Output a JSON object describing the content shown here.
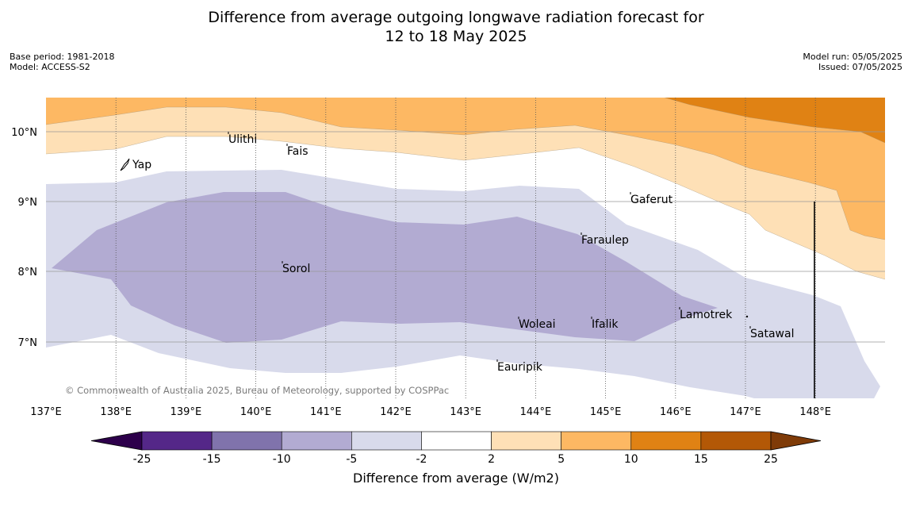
{
  "title": {
    "line1": "Difference from average outgoing longwave radiation forecast for",
    "line2": "12 to 18 May 2025"
  },
  "meta_left": {
    "base_period": "Base period: 1981-2018",
    "model": "Model: ACCESS-S2"
  },
  "meta_right": {
    "model_run": "Model run: 05/05/2025",
    "issued": "Issued: 07/05/2025"
  },
  "map": {
    "lon_ticks": [
      "137°E",
      "138°E",
      "139°E",
      "140°E",
      "141°E",
      "142°E",
      "143°E",
      "144°E",
      "145°E",
      "146°E",
      "147°E",
      "148°E"
    ],
    "lat_ticks": [
      "10°N",
      "9°N",
      "8°N",
      "7°N"
    ],
    "places": [
      {
        "name": "Ulithi"
      },
      {
        "name": "Fais"
      },
      {
        "name": "Yap"
      },
      {
        "name": "Gaferut"
      },
      {
        "name": "Faraulep"
      },
      {
        "name": "Sorol"
      },
      {
        "name": "Lamotrek"
      },
      {
        "name": "Woleai"
      },
      {
        "name": "Ifalik"
      },
      {
        "name": "Satawal"
      },
      {
        "name": "Eauripik"
      }
    ],
    "copyright": "© Commonwealth of Australia 2025, Bureau of Meteorology, supported by COSPPac"
  },
  "colorbar": {
    "label": "Difference from average (W/m2)",
    "ticks": [
      "-25",
      "-15",
      "-10",
      "-5",
      "-2",
      "2",
      "5",
      "10",
      "15",
      "25"
    ],
    "colors": {
      "below": "#2d004b",
      "bins": [
        "#542788",
        "#8073ac",
        "#b2abd2",
        "#d8daeb",
        "#ffffff",
        "#fee0b6",
        "#fdb863",
        "#e08214",
        "#b35806"
      ],
      "above": "#7f3b08"
    }
  }
}
